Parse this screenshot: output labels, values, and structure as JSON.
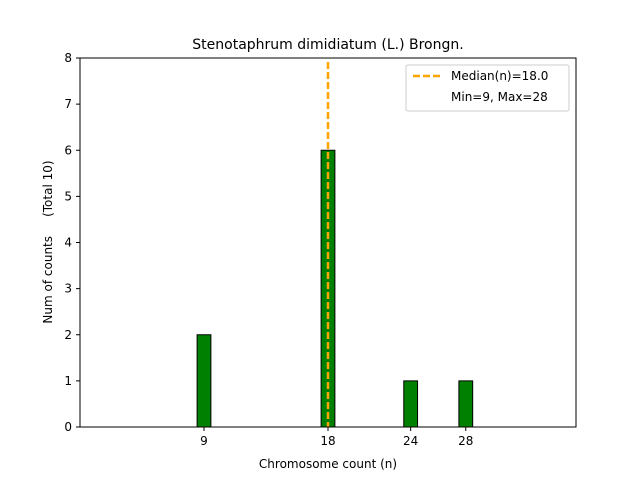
{
  "chart_data": {
    "type": "bar",
    "title": "Stenotaphrum dimidiatum (L.) Brongn.",
    "xlabel": "Chromosome count (n)",
    "ylabel": "Num of counts     (Total 10)",
    "x_ticks": [
      9,
      18,
      24,
      28
    ],
    "y_ticks": [
      0,
      1,
      2,
      3,
      4,
      5,
      6,
      7,
      8
    ],
    "xlim": [
      0,
      36
    ],
    "ylim": [
      0,
      8
    ],
    "bars": [
      {
        "x": 9,
        "value": 2
      },
      {
        "x": 18,
        "value": 6
      },
      {
        "x": 24,
        "value": 1
      },
      {
        "x": 28,
        "value": 1
      }
    ],
    "bar_color": "#008000",
    "bar_edge_color": "#000000",
    "median": 18.0,
    "median_color": "#FFA500",
    "grid": false,
    "legend_position": "top-right",
    "legend": [
      {
        "label": "Median(n)=18.0",
        "style": "dashed-line"
      },
      {
        "label": "Min=9, Max=28",
        "style": "none"
      }
    ]
  }
}
